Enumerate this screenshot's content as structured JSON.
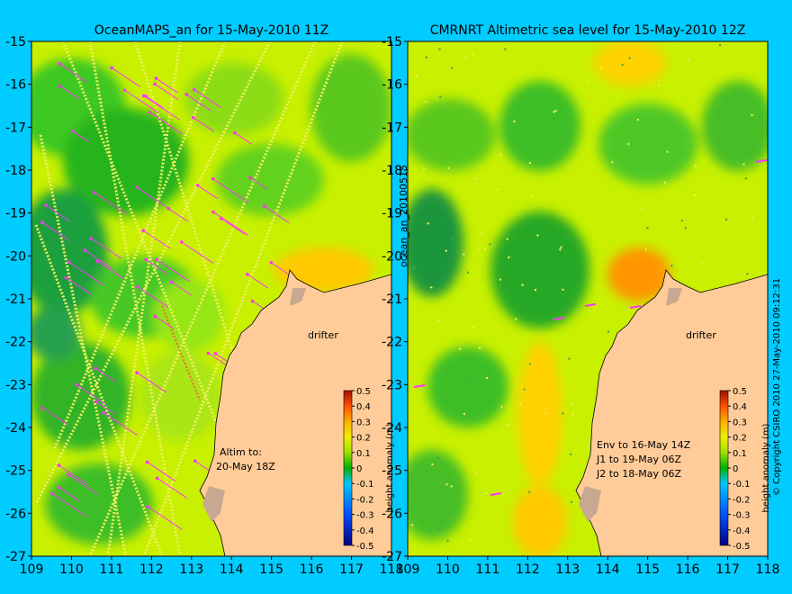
{
  "page": {
    "background": "#00ccff",
    "side_text": "ocean_an_20100515",
    "copyright": "© Copyright CSIRO 2010   27-May-2010 09:12:31"
  },
  "chart_data": [
    {
      "type": "heatmap",
      "title": "OceanMAPS_an for 15-May-2010 11Z",
      "x_ticks": [
        109,
        110,
        111,
        112,
        113,
        114,
        115,
        116,
        117,
        118
      ],
      "y_ticks": [
        -15,
        -16,
        -17,
        -18,
        -19,
        -20,
        -21,
        -22,
        -23,
        -24,
        -25,
        -26,
        -27
      ],
      "xlim": [
        109,
        118
      ],
      "ylim": [
        -27,
        -15
      ],
      "annotations": {
        "drifter": "drifter",
        "altim_1": "Altim to:",
        "altim_2": "20-May 18Z"
      },
      "colorbar": {
        "label": "height anomaly (m)",
        "ticks": [
          "0.5",
          "0.4",
          "0.3",
          "0.2",
          "0.1",
          "0",
          "-0.1",
          "-0.2",
          "-0.3",
          "-0.4",
          "-0.5"
        ]
      }
    },
    {
      "type": "heatmap",
      "title": "CMRNRT Altimetric sea level  for 15-May-2010 12Z",
      "x_ticks": [
        109,
        110,
        111,
        112,
        113,
        114,
        115,
        116,
        117,
        118
      ],
      "y_ticks": [
        -15,
        -16,
        -17,
        -18,
        -19,
        -20,
        -21,
        -22,
        -23,
        -24,
        -25,
        -26,
        -27
      ],
      "xlim": [
        109,
        118
      ],
      "ylim": [
        -27,
        -15
      ],
      "annotations": {
        "drifter": "drifter",
        "env_1": "Env to 16-May 14Z",
        "env_2": "J1 to 19-May 06Z",
        "env_3": "J2 to 18-May 06Z"
      },
      "colorbar": {
        "label": "height anomaly (m)",
        "ticks": [
          "0.5",
          "0.4",
          "0.3",
          "0.2",
          "0.1",
          "0",
          "-0.1",
          "-0.2",
          "-0.3",
          "-0.4",
          "-0.5"
        ]
      }
    }
  ],
  "colors": {
    "land": "#ffcc99",
    "ocean_base": "#c8f000",
    "arrows": "#ff33ff",
    "contour": "#33ccff"
  }
}
